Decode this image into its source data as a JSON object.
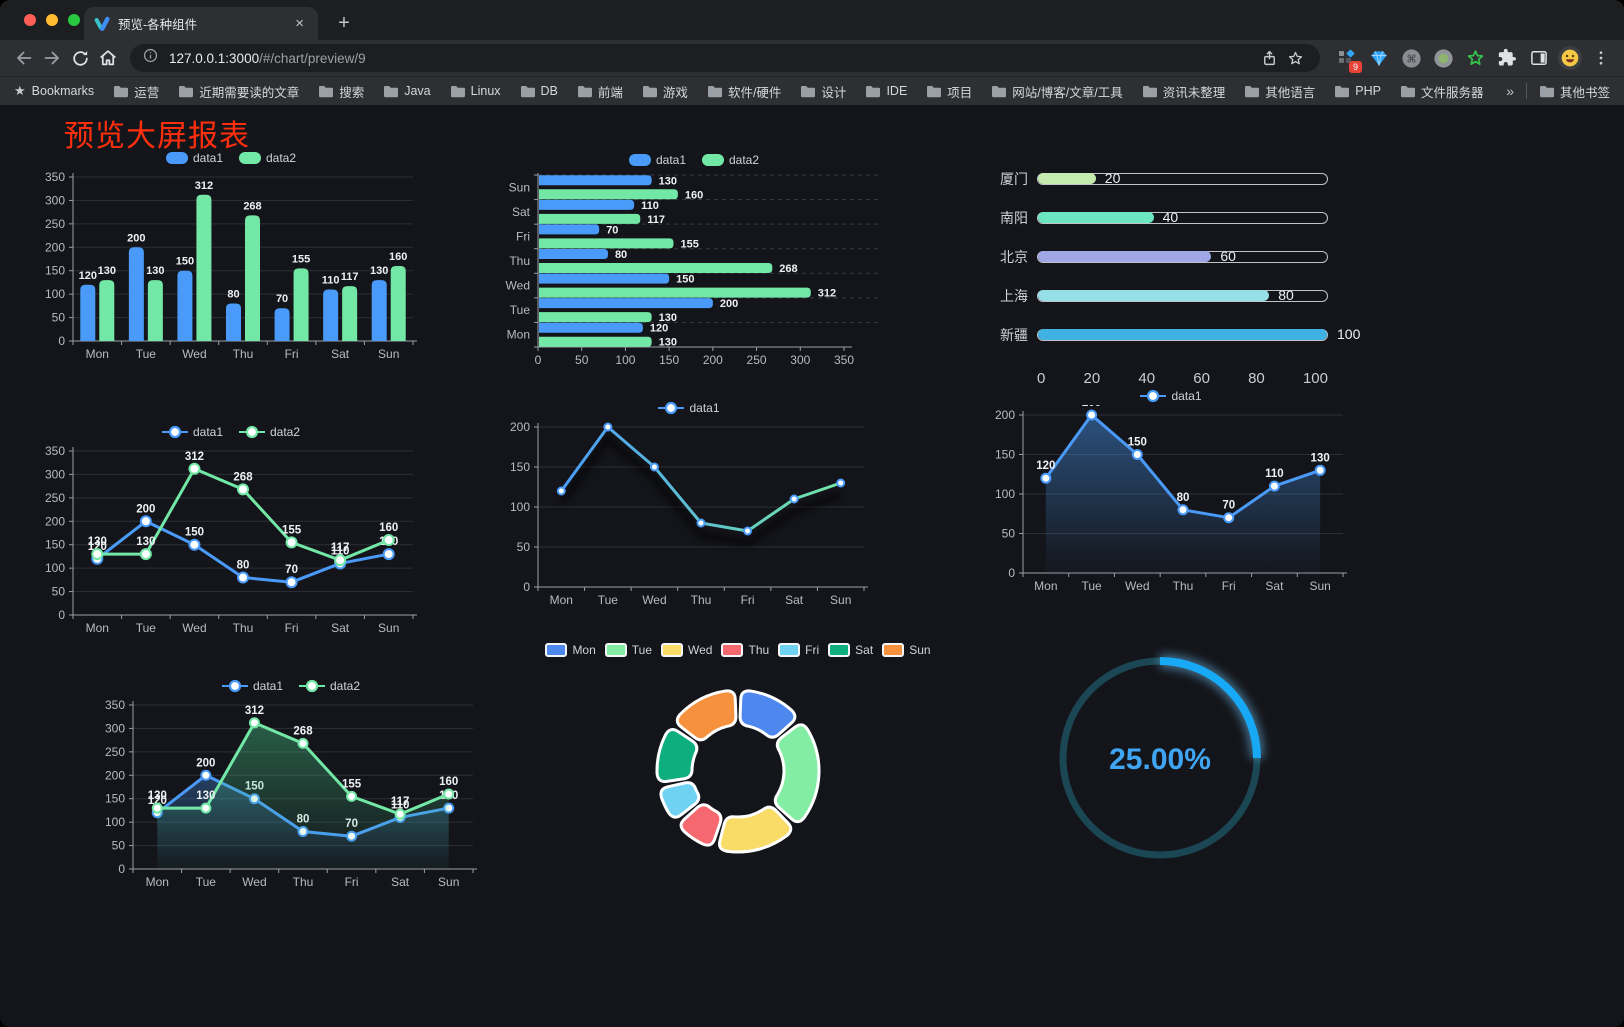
{
  "browser": {
    "traffic_light_colors": [
      "#ff5f57",
      "#febc2e",
      "#28c840"
    ],
    "tab_title": "预览-各种组件",
    "close_glyph": "×",
    "new_tab_glyph": "+",
    "url_host": "127.0.0.1:3000",
    "url_path": "/#/chart/preview/9",
    "extension_badge": "9",
    "bookmarks_bar": {
      "root_label": "Bookmarks",
      "folders": [
        "运营",
        "近期需要读的文章",
        "搜索",
        "Java",
        "Linux",
        "DB",
        "前端",
        "游戏",
        "软件/硬件",
        "设计",
        "IDE",
        "项目",
        "网站/博客/文章/工具",
        "资讯未整理",
        "其他语言",
        "PHP",
        "文件服务器"
      ],
      "overflow_glyph": "»",
      "other_bookmarks": "其他书签"
    }
  },
  "page": {
    "title": "预览大屏报表",
    "title_color": "#ff2f0e",
    "background": "#14151a"
  },
  "chart_data": [
    {
      "type": "bar",
      "legend": [
        "data1",
        "data2"
      ],
      "legend_style": "bar",
      "categories": [
        "Mon",
        "Tue",
        "Wed",
        "Thu",
        "Fri",
        "Sat",
        "Sun"
      ],
      "series": [
        {
          "name": "data1",
          "color": "#4a9bf9",
          "values": [
            120,
            200,
            150,
            80,
            70,
            110,
            130
          ]
        },
        {
          "name": "data2",
          "color": "#73e8a6",
          "values": [
            130,
            130,
            312,
            268,
            155,
            117,
            160
          ]
        }
      ],
      "ylim": [
        0,
        350
      ],
      "ytick_step": 50,
      "value_labels": true,
      "grid": true
    },
    {
      "type": "bar-horizontal",
      "legend": [
        "data1",
        "data2"
      ],
      "legend_style": "bar",
      "categories": [
        "Mon",
        "Tue",
        "Wed",
        "Thu",
        "Fri",
        "Sat",
        "Sun"
      ],
      "series": [
        {
          "name": "data1",
          "color": "#4a9bf9",
          "values": [
            120,
            200,
            150,
            80,
            70,
            110,
            130
          ]
        },
        {
          "name": "data2",
          "color": "#73e8a6",
          "values": [
            130,
            130,
            312,
            268,
            155,
            117,
            160
          ]
        }
      ],
      "xlim": [
        0,
        350
      ],
      "xtick_step": 50,
      "value_labels": true
    },
    {
      "type": "progress",
      "max": 100,
      "axis_ticks": [
        0,
        20,
        40,
        60,
        80,
        100
      ],
      "items": [
        {
          "label": "厦门",
          "value": 20,
          "color": "#c4ebad"
        },
        {
          "label": "南阳",
          "value": 40,
          "color": "#6be6c1"
        },
        {
          "label": "北京",
          "value": 60,
          "color": "#a0a7e6"
        },
        {
          "label": "上海",
          "value": 80,
          "color": "#96dee8"
        },
        {
          "label": "新疆",
          "value": 100,
          "color": "#3fb1e3"
        }
      ]
    },
    {
      "type": "line",
      "legend": [
        "data1",
        "data2"
      ],
      "legend_style": "line",
      "categories": [
        "Mon",
        "Tue",
        "Wed",
        "Thu",
        "Fri",
        "Sat",
        "Sun"
      ],
      "series": [
        {
          "name": "data1",
          "color": "#4a9bf9",
          "values": [
            120,
            200,
            150,
            80,
            70,
            110,
            130
          ]
        },
        {
          "name": "data2",
          "color": "#73e8a6",
          "values": [
            130,
            130,
            312,
            268,
            155,
            117,
            160
          ]
        }
      ],
      "ylim": [
        0,
        350
      ],
      "ytick_step": 50,
      "value_labels": true,
      "marker_r": 5
    },
    {
      "type": "line",
      "legend": [
        "data1"
      ],
      "legend_style": "line",
      "categories": [
        "Mon",
        "Tue",
        "Wed",
        "Thu",
        "Fri",
        "Sat",
        "Sun"
      ],
      "series": [
        {
          "name": "data1",
          "color": "#4a9bf9",
          "gradient": [
            "#4a9bf9",
            "#73e8a6"
          ],
          "values": [
            120,
            200,
            150,
            80,
            70,
            110,
            130
          ]
        }
      ],
      "ylim": [
        0,
        200
      ],
      "ytick_step": 50,
      "value_labels": false,
      "marker_r": 3.5,
      "shadow": true
    },
    {
      "type": "area",
      "legend": [
        "data1"
      ],
      "legend_style": "line",
      "categories": [
        "Mon",
        "Tue",
        "Wed",
        "Thu",
        "Fri",
        "Sat",
        "Sun"
      ],
      "series": [
        {
          "name": "data1",
          "color": "#4a9bf9",
          "area": true,
          "area_opacity": 0.45,
          "values": [
            120,
            200,
            150,
            80,
            70,
            110,
            130
          ]
        }
      ],
      "ylim": [
        0,
        200
      ],
      "ytick_step": 50,
      "value_labels": true,
      "marker_r": 4.5
    },
    {
      "type": "area",
      "legend": [
        "data1",
        "data2"
      ],
      "legend_style": "line",
      "categories": [
        "Mon",
        "Tue",
        "Wed",
        "Thu",
        "Fri",
        "Sat",
        "Sun"
      ],
      "series": [
        {
          "name": "data1",
          "color": "#4a9bf9",
          "area": true,
          "area_opacity": 0.32,
          "values": [
            120,
            200,
            150,
            80,
            70,
            110,
            130
          ]
        },
        {
          "name": "data2",
          "color": "#73e8a6",
          "area": true,
          "area_color": "#45c287",
          "area_opacity": 0.42,
          "values": [
            130,
            130,
            312,
            268,
            155,
            117,
            160
          ]
        }
      ],
      "ylim": [
        0,
        350
      ],
      "ytick_step": 50,
      "value_labels": true,
      "marker_r": 4.5
    },
    {
      "type": "pie",
      "legend": [
        "Mon",
        "Tue",
        "Wed",
        "Thu",
        "Fri",
        "Sat",
        "Sun"
      ],
      "legend_style": "pie",
      "categories": [
        "Mon",
        "Tue",
        "Wed",
        "Thu",
        "Fri",
        "Sat",
        "Sun"
      ],
      "values": [
        120,
        200,
        150,
        80,
        70,
        110,
        130
      ],
      "colors": [
        "#4e87ed",
        "#83eda3",
        "#f8dc67",
        "#f5686f",
        "#70d2f2",
        "#0fae7e",
        "#f6913e"
      ]
    },
    {
      "type": "gauge",
      "value": 25,
      "max": 100,
      "text": "25.00%",
      "color": "#18a9f6",
      "track_color": "#1b4754",
      "text_color": "#3fa5f2"
    }
  ]
}
